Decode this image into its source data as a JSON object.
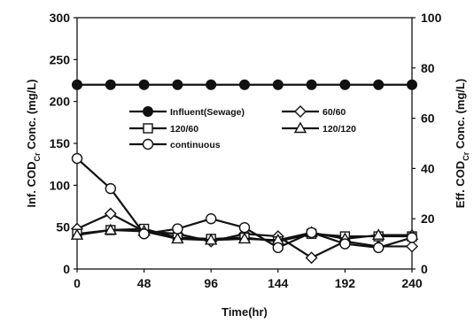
{
  "chart_data": {
    "type": "line",
    "xlabel": "Time(hr)",
    "ylabel_left": {
      "prefix": "Inf. COD",
      "sub": "Cr",
      "suffix": " Conc. (mg/L)"
    },
    "ylabel_right": {
      "prefix": "Eff. COD",
      "sub": "Cr",
      "suffix": " Conc. (mg/L)"
    },
    "x_ticks": [
      0,
      48,
      96,
      144,
      192,
      240
    ],
    "xlim": [
      0,
      240
    ],
    "ylim_left": [
      0,
      300
    ],
    "y_ticks_left": [
      0,
      50,
      100,
      150,
      200,
      250,
      300
    ],
    "ylim_right": [
      0,
      100
    ],
    "y_ticks_right": [
      0,
      20,
      40,
      60,
      80,
      100
    ],
    "grid": false,
    "legend_placement": "center",
    "series": [
      {
        "name": "Influent(Sewage)",
        "axis": "left",
        "marker": "circle-filled",
        "x": [
          0,
          24,
          48,
          72,
          96,
          120,
          144,
          168,
          192,
          216,
          240
        ],
        "values": [
          220,
          220,
          220,
          220,
          220,
          220,
          220,
          220,
          220,
          220,
          220
        ]
      },
      {
        "name": "60/60",
        "axis": "right",
        "marker": "diamond-open",
        "x": [
          0,
          24,
          48,
          72,
          96,
          120,
          144,
          168,
          192,
          216,
          240
        ],
        "values": [
          16,
          22,
          15,
          14,
          11,
          14,
          13,
          4.5,
          11,
          9,
          9
        ]
      },
      {
        "name": "120/60",
        "axis": "right",
        "marker": "square-open",
        "x": [
          0,
          24,
          48,
          72,
          96,
          120,
          144,
          168,
          192,
          216,
          240
        ],
        "values": [
          14,
          15.5,
          16,
          12.5,
          12,
          12.5,
          11,
          14,
          13,
          13,
          13
        ]
      },
      {
        "name": "120/120",
        "axis": "right",
        "marker": "triangle-open",
        "x": [
          0,
          24,
          48,
          72,
          96,
          120,
          144,
          168,
          192,
          216,
          240
        ],
        "values": [
          13.5,
          15.5,
          15,
          12,
          11.5,
          12,
          11.5,
          14.5,
          12,
          13.5,
          13.5
        ]
      },
      {
        "name": "continuous",
        "axis": "right",
        "marker": "circle-open",
        "x": [
          0,
          24,
          48,
          72,
          96,
          120,
          144,
          168,
          192,
          216,
          240
        ],
        "values": [
          44,
          32,
          14,
          16,
          20,
          16.5,
          8.5,
          14.5,
          10,
          8.5,
          12.5
        ]
      }
    ]
  }
}
